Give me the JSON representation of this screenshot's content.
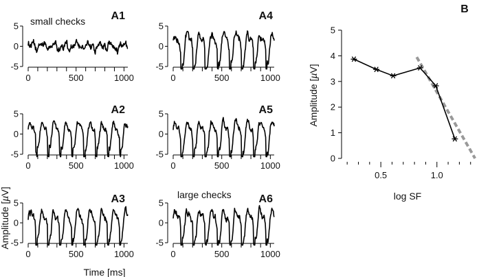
{
  "chart_data": [
    {
      "type": "line",
      "panel": "A1",
      "annotation": "small checks",
      "x_ticks": [
        0,
        500,
        1000
      ],
      "y_ticks": [
        -5,
        0,
        5
      ],
      "xlim": [
        0,
        1040
      ],
      "ylim": [
        -5,
        5
      ],
      "waveform": {
        "period_ms": 120,
        "amplitude_uv": 1.1,
        "shape": "noise"
      }
    },
    {
      "type": "line",
      "panel": "A2",
      "annotation": "",
      "x_ticks": [
        0,
        500,
        1000
      ],
      "y_ticks": [
        -5,
        0,
        5
      ],
      "xlim": [
        0,
        1040
      ],
      "ylim": [
        -5,
        5
      ],
      "waveform": {
        "period_ms": 125,
        "amplitude_uv": 3.8,
        "shape": "periodic"
      }
    },
    {
      "type": "line",
      "panel": "A3",
      "annotation": "",
      "x_ticks": [
        0,
        500,
        1000
      ],
      "y_ticks": [
        -5,
        0,
        5
      ],
      "xlim": [
        0,
        1040
      ],
      "ylim": [
        -5,
        5
      ],
      "waveform": {
        "period_ms": 125,
        "amplitude_uv": 4.4,
        "shape": "periodic"
      }
    },
    {
      "type": "line",
      "panel": "A4",
      "annotation": "",
      "x_ticks": [
        0,
        500,
        1000
      ],
      "y_ticks": [
        -5,
        0,
        5
      ],
      "xlim": [
        0,
        1040
      ],
      "ylim": [
        -5,
        5
      ],
      "waveform": {
        "period_ms": 125,
        "amplitude_uv": 4.6,
        "shape": "periodic"
      }
    },
    {
      "type": "line",
      "panel": "A5",
      "annotation": "",
      "x_ticks": [
        0,
        500,
        1000
      ],
      "y_ticks": [
        -5,
        0,
        5
      ],
      "xlim": [
        0,
        1040
      ],
      "ylim": [
        -5,
        5
      ],
      "waveform": {
        "period_ms": 125,
        "amplitude_uv": 4.4,
        "shape": "periodic"
      }
    },
    {
      "type": "line",
      "panel": "A6",
      "annotation": "large checks",
      "x_ticks": [
        0,
        500,
        1000
      ],
      "y_ticks": [
        -5,
        0,
        5
      ],
      "xlim": [
        0,
        1040
      ],
      "ylim": [
        -5,
        5
      ],
      "waveform": {
        "period_ms": 125,
        "amplitude_uv": 4.6,
        "shape": "periodic"
      }
    },
    {
      "type": "line",
      "panel": "B",
      "xlabel": "log SF",
      "ylabel": "Amplitude [µV]",
      "x_ticks": [
        0.5,
        1.0
      ],
      "y_ticks": [
        0,
        1,
        2,
        3,
        4,
        5
      ],
      "xlim": [
        0.15,
        1.32
      ],
      "ylim": [
        0,
        5
      ],
      "series": [
        {
          "x": [
            0.26,
            0.46,
            0.61,
            0.85,
            0.99,
            1.16
          ],
          "y": [
            3.87,
            3.47,
            3.22,
            3.53,
            2.83,
            0.76
          ],
          "marker": "asterisk"
        }
      ],
      "regression": {
        "x": [
          0.82,
          1.34
        ],
        "y": [
          3.95,
          0
        ],
        "style": "dashed",
        "color": "#999999"
      }
    }
  ],
  "labels": {
    "a_xlabel": "Time [ms]",
    "a_ylabel_prefix": "Amplitude [",
    "a_ylabel_unit": "µ",
    "a_ylabel_suffix": "V]",
    "b_ylabel_prefix": "Amplitude [",
    "b_ylabel_unit": "µ",
    "b_ylabel_suffix": "V]",
    "b_xlabel": "log SF"
  }
}
